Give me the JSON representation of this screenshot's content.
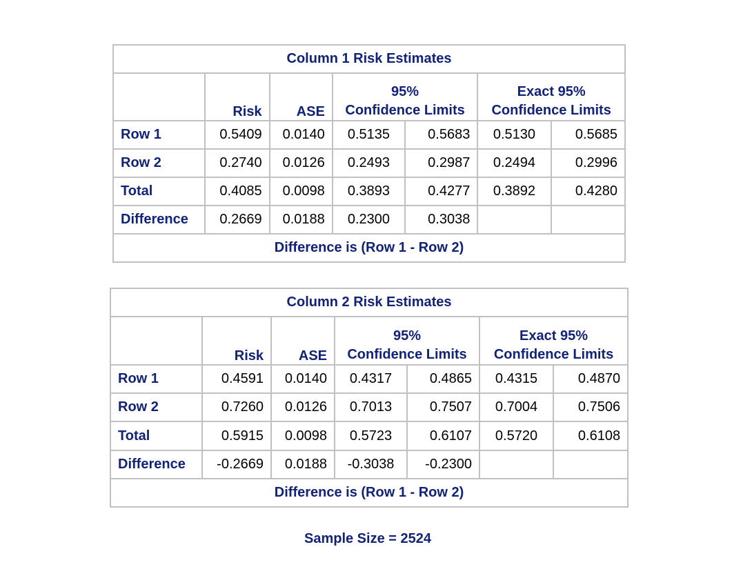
{
  "tables": [
    {
      "title": "Column 1 Risk Estimates",
      "headers": {
        "risk": "Risk",
        "ase": "ASE",
        "ci_line1": "95%",
        "ci_line2": "Confidence Limits",
        "exact_line1": "Exact 95%",
        "exact_line2": "Confidence Limits"
      },
      "rows": [
        {
          "label": "Row 1",
          "risk": "0.5409",
          "ase": "0.0140",
          "ci_low": "0.5135",
          "ci_high": "0.5683",
          "exact_low": "0.5130",
          "exact_high": "0.5685"
        },
        {
          "label": "Row 2",
          "risk": "0.2740",
          "ase": "0.0126",
          "ci_low": "0.2493",
          "ci_high": "0.2987",
          "exact_low": "0.2494",
          "exact_high": "0.2996"
        },
        {
          "label": "Total",
          "risk": "0.4085",
          "ase": "0.0098",
          "ci_low": "0.3893",
          "ci_high": "0.4277",
          "exact_low": "0.3892",
          "exact_high": "0.4280"
        },
        {
          "label": "Difference",
          "risk": "0.2669",
          "ase": "0.0188",
          "ci_low": "0.2300",
          "ci_high": "0.3038",
          "exact_low": "",
          "exact_high": ""
        }
      ],
      "footnote": "Difference is (Row 1 - Row 2)"
    },
    {
      "title": "Column 2 Risk Estimates",
      "headers": {
        "risk": "Risk",
        "ase": "ASE",
        "ci_line1": "95%",
        "ci_line2": "Confidence Limits",
        "exact_line1": "Exact 95%",
        "exact_line2": "Confidence Limits"
      },
      "rows": [
        {
          "label": "Row 1",
          "risk": "0.4591",
          "ase": "0.0140",
          "ci_low": "0.4317",
          "ci_high": "0.4865",
          "exact_low": "0.4315",
          "exact_high": "0.4870"
        },
        {
          "label": "Row 2",
          "risk": "0.7260",
          "ase": "0.0126",
          "ci_low": "0.7013",
          "ci_high": "0.7507",
          "exact_low": "0.7004",
          "exact_high": "0.7506"
        },
        {
          "label": "Total",
          "risk": "0.5915",
          "ase": "0.0098",
          "ci_low": "0.5723",
          "ci_high": "0.6107",
          "exact_low": "0.5720",
          "exact_high": "0.6108"
        },
        {
          "label": "Difference",
          "risk": "-0.2669",
          "ase": "0.0188",
          "ci_low": "-0.3038",
          "ci_high": "-0.2300",
          "exact_low": "",
          "exact_high": ""
        }
      ],
      "footnote": "Difference is (Row 1 - Row 2)"
    }
  ],
  "sample_size": "Sample Size = 2524",
  "colors": {
    "header_text": "#112277",
    "border": "#c1c1c1",
    "body_text": "#000000"
  }
}
